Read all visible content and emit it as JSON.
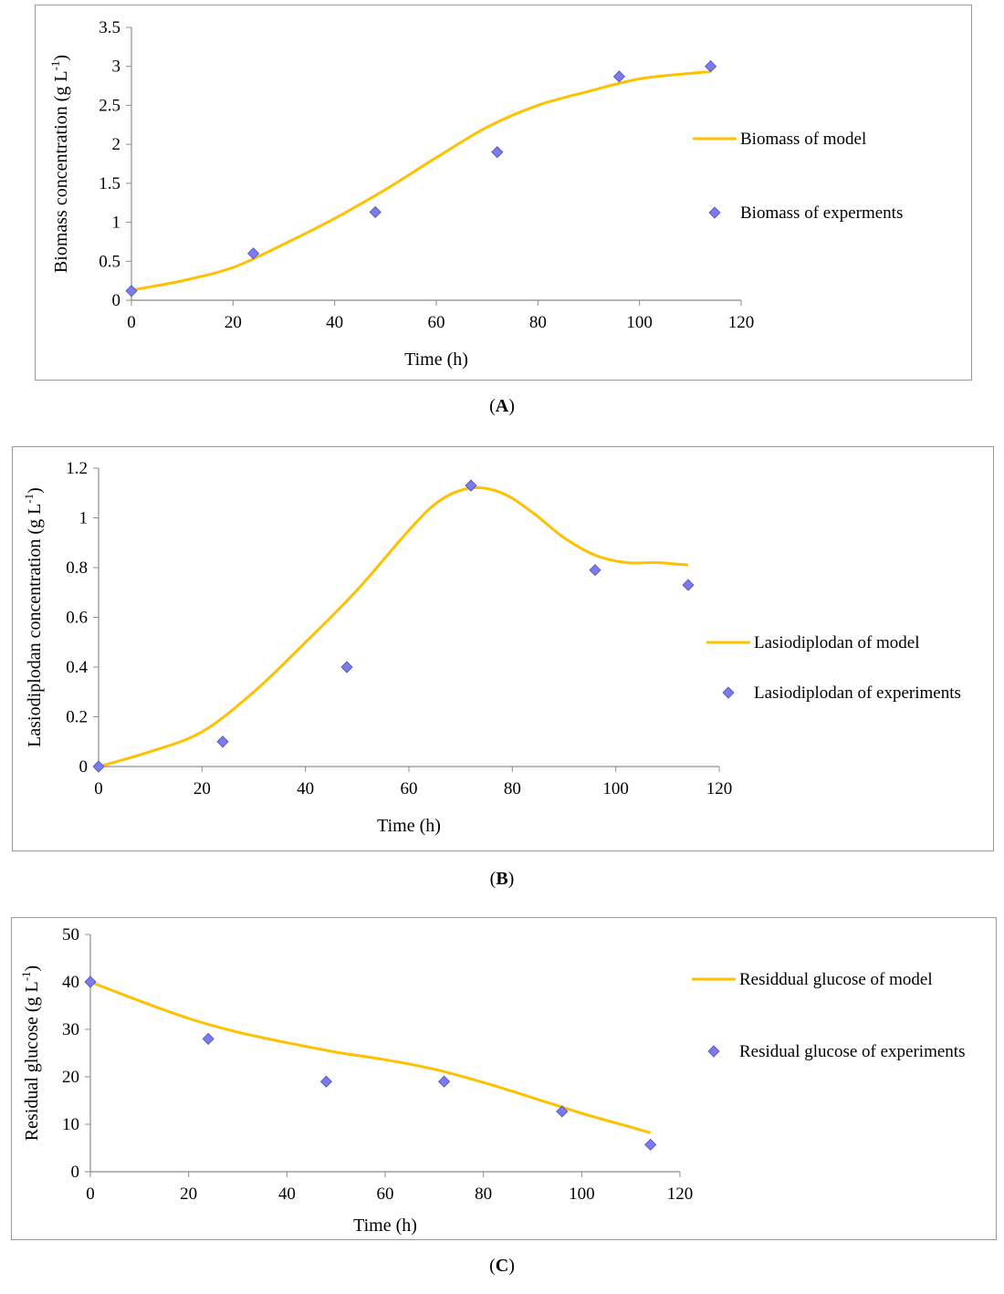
{
  "charts": {
    "a": {
      "caption_open": "(",
      "caption_letter": "A",
      "caption_close": ")",
      "chart_data": {
        "type": "line",
        "title": "",
        "xlabel": "Time (h)",
        "ylabel_main": "Biomass concentration (g L",
        "ylabel_sup": "-1",
        "ylabel_end": ")",
        "xlim": [
          0,
          120
        ],
        "ylim": [
          0,
          3.5
        ],
        "xticks": [
          0,
          20,
          40,
          60,
          80,
          100,
          120
        ],
        "yticks": [
          0,
          0.5,
          1,
          1.5,
          2,
          2.5,
          3,
          3.5
        ],
        "ytick_labels": [
          "0",
          "0.5",
          "1",
          "1.5",
          "2",
          "2.5",
          "3",
          "3.5"
        ],
        "legend_position": "right",
        "series": [
          {
            "name": "Biomass of model",
            "kind": "line",
            "color": "#FFC000",
            "x": [
              0,
              10,
              20,
              30,
              40,
              50,
              60,
              70,
              80,
              90,
              100,
              110,
              114
            ],
            "y": [
              0.13,
              0.25,
              0.42,
              0.72,
              1.05,
              1.42,
              1.83,
              2.22,
              2.5,
              2.68,
              2.84,
              2.91,
              2.93
            ]
          },
          {
            "name": "Biomass of experments",
            "kind": "scatter",
            "color": "#7B7BEE",
            "x": [
              0,
              24,
              48,
              72,
              96,
              114
            ],
            "y": [
              0.12,
              0.6,
              1.13,
              1.9,
              2.87,
              3.0
            ]
          }
        ]
      }
    },
    "b": {
      "caption_open": "(",
      "caption_letter": "B",
      "caption_close": ")",
      "chart_data": {
        "type": "line",
        "title": "",
        "xlabel": "Time (h)",
        "ylabel_main": "Lasiodiplodan concentration (g L",
        "ylabel_sup": "-1",
        "ylabel_end": ")",
        "xlim": [
          0,
          120
        ],
        "ylim": [
          0,
          1.2
        ],
        "xticks": [
          0,
          20,
          40,
          60,
          80,
          100,
          120
        ],
        "yticks": [
          0,
          0.2,
          0.4,
          0.6,
          0.8,
          1,
          1.2
        ],
        "ytick_labels": [
          "0",
          "0.2",
          "0.4",
          "0.6",
          "0.8",
          "1",
          "1.2"
        ],
        "legend_position": "right",
        "series": [
          {
            "name": "Lasiodiplodan of model",
            "kind": "line",
            "color": "#FFC000",
            "x": [
              0,
              10,
              20,
              30,
              40,
              50,
              60,
              66,
              72,
              78,
              84,
              90,
              96,
              102,
              108,
              114
            ],
            "y": [
              0.0,
              0.06,
              0.14,
              0.3,
              0.5,
              0.71,
              0.95,
              1.07,
              1.12,
              1.1,
              1.02,
              0.92,
              0.85,
              0.82,
              0.82,
              0.81
            ]
          },
          {
            "name": "Lasiodiplodan of experiments",
            "kind": "scatter",
            "color": "#7B7BEE",
            "x": [
              0,
              24,
              48,
              72,
              96,
              114
            ],
            "y": [
              0.0,
              0.1,
              0.4,
              1.13,
              0.79,
              0.73
            ]
          }
        ]
      }
    },
    "c": {
      "caption_open": "(",
      "caption_letter": "C",
      "caption_close": ")",
      "chart_data": {
        "type": "line",
        "title": "",
        "xlabel": "Time (h)",
        "ylabel_main": "Residual glucose (g L",
        "ylabel_sup": "-1",
        "ylabel_end": ")",
        "xlim": [
          0,
          120
        ],
        "ylim": [
          0,
          50
        ],
        "xticks": [
          0,
          20,
          40,
          60,
          80,
          100,
          120
        ],
        "yticks": [
          0,
          10,
          20,
          30,
          40,
          50
        ],
        "ytick_labels": [
          "0",
          "10",
          "20",
          "30",
          "40",
          "50"
        ],
        "legend_position": "right",
        "series": [
          {
            "name": "Residdual glucose of model",
            "kind": "line",
            "color": "#FFC000",
            "x": [
              0,
              10,
              20,
              30,
              40,
              50,
              60,
              70,
              80,
              90,
              100,
              110,
              114
            ],
            "y": [
              40.0,
              36.0,
              32.3,
              29.4,
              27.2,
              25.2,
              23.6,
              21.6,
              18.8,
              15.6,
              12.3,
              9.4,
              8.2
            ]
          },
          {
            "name": "Residual glucose of experiments",
            "kind": "scatter",
            "color": "#7B7BEE",
            "x": [
              0,
              24,
              48,
              72,
              96,
              114
            ],
            "y": [
              40.0,
              28.0,
              19.0,
              19.0,
              12.7,
              5.7
            ]
          }
        ]
      }
    }
  }
}
